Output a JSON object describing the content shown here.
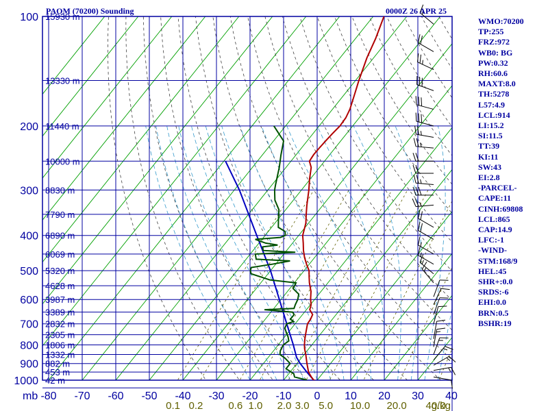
{
  "header": {
    "station": "PAOM (70200) Sounding",
    "valid_time": "0000Z 26 APR 25"
  },
  "colors": {
    "frame": "#0000a0",
    "grid": "#0000a0",
    "isotherm": "#00a000",
    "dry_adiabat": "#404040",
    "moist_adiabat": "#3399cc",
    "temperature": "#b00000",
    "dewpoint": "#005000",
    "parcel": "#0000c0",
    "wind": "#000000",
    "mixing_ratio": "#606000"
  },
  "indices": [
    "WMO:70200",
    "TP:255",
    "FRZ:972",
    "WB0: BG",
    "PW:0.32",
    "RH:60.6",
    "MAXT:8.0",
    "TH:5278",
    "L57:4.9",
    "LCL:914",
    "LI:15.2",
    "SI:11.5",
    "TT:39",
    "KI:11",
    "SW:43",
    "EI:2.8",
    "-PARCEL-",
    "CAPE:11",
    "CINH:69808",
    "LCL:865",
    "CAP:14.9",
    "LFC:-1",
    "-WIND-",
    "STM:168/9",
    "HEL:45",
    "SHR+:0.0",
    "SRDS:-6",
    "EHI:0.0",
    "BRN:0.5",
    "BSHR:19"
  ],
  "chart_data": {
    "type": "skew-t",
    "y_axis_label": "mb",
    "x_axis_label": "g/kg",
    "pressure_ticks": [
      100,
      200,
      300,
      400,
      500,
      600,
      700,
      800,
      900,
      1000
    ],
    "temperature_ticks": [
      -80,
      -70,
      -60,
      -50,
      -40,
      -30,
      -20,
      -10,
      0,
      10,
      20,
      30,
      40
    ],
    "temperature_tick_labels": [
      "-80",
      "-70",
      "-60",
      "-50",
      "-40",
      "-30",
      "-20",
      "-10",
      "0",
      "10",
      "20",
      "30",
      "40"
    ],
    "mixing_ratio_labels": [
      {
        "label": "0.1",
        "value": 0.1
      },
      {
        "label": "0.2",
        "value": 0.2
      },
      {
        "label": "0.6",
        "value": 0.6
      },
      {
        "label": "1.0",
        "value": 1.0
      },
      {
        "label": "2.0",
        "value": 2.0
      },
      {
        "label": "3.0",
        "value": 3.0
      },
      {
        "label": "5.0",
        "value": 5.0
      },
      {
        "label": "10.0",
        "value": 10.0
      },
      {
        "label": "20.0",
        "value": 20.0
      },
      {
        "label": "40.0",
        "value": 40.0
      }
    ],
    "height_labels": [
      {
        "p": 100,
        "label": "15930 m"
      },
      {
        "p": 150,
        "label": "13330 m"
      },
      {
        "p": 200,
        "label": "11440 m"
      },
      {
        "p": 250,
        "label": "10000 m"
      },
      {
        "p": 300,
        "label": "8830 m"
      },
      {
        "p": 350,
        "label": "7790 m"
      },
      {
        "p": 400,
        "label": "6890 m"
      },
      {
        "p": 450,
        "label": "6069 m"
      },
      {
        "p": 500,
        "label": "5320 m"
      },
      {
        "p": 550,
        "label": "4628 m"
      },
      {
        "p": 600,
        "label": "3987 m"
      },
      {
        "p": 650,
        "label": "3389 m"
      },
      {
        "p": 700,
        "label": "2832 m"
      },
      {
        "p": 750,
        "label": "2305 m"
      },
      {
        "p": 800,
        "label": "1806 m"
      },
      {
        "p": 850,
        "label": "1332 m"
      },
      {
        "p": 900,
        "label": "882 m"
      },
      {
        "p": 950,
        "label": "453 m"
      },
      {
        "p": 1000,
        "label": "42 m"
      }
    ],
    "temperature_profile": [
      [
        1010,
        1.0
      ],
      [
        1000,
        -1.0
      ],
      [
        980,
        -2.5
      ],
      [
        950,
        -4.5
      ],
      [
        900,
        -7.0
      ],
      [
        850,
        -9.5
      ],
      [
        820,
        -11.2
      ],
      [
        800,
        -12.2
      ],
      [
        770,
        -13.5
      ],
      [
        750,
        -14.3
      ],
      [
        720,
        -15.5
      ],
      [
        700,
        -16.3
      ],
      [
        680,
        -16.5
      ],
      [
        660,
        -17.0
      ],
      [
        640,
        -19.0
      ],
      [
        620,
        -19.8
      ],
      [
        600,
        -21.2
      ],
      [
        570,
        -23.0
      ],
      [
        540,
        -25.5
      ],
      [
        520,
        -27.0
      ],
      [
        500,
        -28.5
      ],
      [
        480,
        -30.8
      ],
      [
        460,
        -33.0
      ],
      [
        440,
        -35.0
      ],
      [
        420,
        -36.8
      ],
      [
        400,
        -38.8
      ],
      [
        370,
        -40.8
      ],
      [
        350,
        -42.8
      ],
      [
        330,
        -44.8
      ],
      [
        300,
        -47.8
      ],
      [
        280,
        -50.2
      ],
      [
        260,
        -52.5
      ],
      [
        250,
        -54.5
      ],
      [
        240,
        -54.8
      ],
      [
        230,
        -54.7
      ],
      [
        220,
        -54.5
      ],
      [
        210,
        -54.2
      ],
      [
        200,
        -53.8
      ],
      [
        190,
        -54.0
      ],
      [
        180,
        -54.8
      ],
      [
        165,
        -56.8
      ],
      [
        150,
        -59.0
      ],
      [
        130,
        -62.0
      ],
      [
        115,
        -64.0
      ],
      [
        100,
        -66.8
      ]
    ],
    "dewpoint_profile": [
      [
        1000,
        -3.0
      ],
      [
        980,
        -7.5
      ],
      [
        960,
        -8.5
      ],
      [
        930,
        -12.0
      ],
      [
        900,
        -12.0
      ],
      [
        870,
        -14.8
      ],
      [
        850,
        -17.2
      ],
      [
        830,
        -18.0
      ],
      [
        800,
        -18.5
      ],
      [
        780,
        -17.8
      ],
      [
        760,
        -19.0
      ],
      [
        740,
        -20.5
      ],
      [
        720,
        -22.0
      ],
      [
        700,
        -22.5
      ],
      [
        690,
        -21.0
      ],
      [
        680,
        -22.5
      ],
      [
        660,
        -22.5
      ],
      [
        650,
        -23.5
      ],
      [
        640,
        -32.5
      ],
      [
        635,
        -24.0
      ],
      [
        620,
        -24.5
      ],
      [
        600,
        -25.0
      ],
      [
        580,
        -26.0
      ],
      [
        560,
        -29.0
      ],
      [
        540,
        -29.5
      ],
      [
        530,
        -38.0
      ],
      [
        510,
        -45.0
      ],
      [
        500,
        -46.0
      ],
      [
        490,
        -46.5
      ],
      [
        480,
        -41.0
      ],
      [
        470,
        -36.5
      ],
      [
        465,
        -47.0
      ],
      [
        450,
        -48.5
      ],
      [
        445,
        -37.0
      ],
      [
        440,
        -47.0
      ],
      [
        430,
        -48.0
      ],
      [
        425,
        -44.0
      ],
      [
        420,
        -48.0
      ],
      [
        410,
        -52.0
      ],
      [
        405,
        -45.0
      ],
      [
        400,
        -44.0
      ],
      [
        390,
        -45.0
      ],
      [
        380,
        -48.0
      ],
      [
        360,
        -50.0
      ],
      [
        340,
        -52.0
      ],
      [
        320,
        -55.5
      ],
      [
        300,
        -58.0
      ],
      [
        290,
        -59.0
      ],
      [
        260,
        -62.0
      ],
      [
        240,
        -64.5
      ],
      [
        220,
        -67.0
      ],
      [
        200,
        -73.5
      ]
    ],
    "parcel_profile": [
      [
        1000,
        -1.0
      ],
      [
        950,
        -5.0
      ],
      [
        900,
        -9.0
      ],
      [
        865,
        -11.6
      ],
      [
        800,
        -15.5
      ],
      [
        700,
        -22.5
      ],
      [
        600,
        -30.5
      ],
      [
        500,
        -40.0
      ],
      [
        400,
        -52.5
      ],
      [
        300,
        -68.5
      ],
      [
        250,
        -79.5
      ]
    ],
    "wind_barbs": [
      {
        "p": 105,
        "dir": 310,
        "spd": 15
      },
      {
        "p": 125,
        "dir": 300,
        "spd": 20
      },
      {
        "p": 140,
        "dir": 295,
        "spd": 25
      },
      {
        "p": 160,
        "dir": 290,
        "spd": 30
      },
      {
        "p": 180,
        "dir": 285,
        "spd": 30
      },
      {
        "p": 200,
        "dir": 285,
        "spd": 30
      },
      {
        "p": 215,
        "dir": 280,
        "spd": 25
      },
      {
        "p": 230,
        "dir": 275,
        "spd": 25
      },
      {
        "p": 250,
        "dir": 270,
        "spd": 20
      },
      {
        "p": 270,
        "dir": 270,
        "spd": 20
      },
      {
        "p": 290,
        "dir": 275,
        "spd": 25
      },
      {
        "p": 310,
        "dir": 270,
        "spd": 30
      },
      {
        "p": 330,
        "dir": 265,
        "spd": 25
      },
      {
        "p": 380,
        "dir": 300,
        "spd": 20
      },
      {
        "p": 410,
        "dir": 300,
        "spd": 20
      },
      {
        "p": 450,
        "dir": 300,
        "spd": 15
      },
      {
        "p": 480,
        "dir": 300,
        "spd": 15
      },
      {
        "p": 510,
        "dir": 310,
        "spd": 15
      },
      {
        "p": 540,
        "dir": 320,
        "spd": 15
      },
      {
        "p": 590,
        "dir": 20,
        "spd": 10
      },
      {
        "p": 620,
        "dir": 25,
        "spd": 10
      },
      {
        "p": 660,
        "dir": 20,
        "spd": 10
      },
      {
        "p": 700,
        "dir": 15,
        "spd": 10
      },
      {
        "p": 770,
        "dir": 10,
        "spd": 10
      },
      {
        "p": 810,
        "dir": 10,
        "spd": 15
      },
      {
        "p": 850,
        "dir": 20,
        "spd": 15
      },
      {
        "p": 880,
        "dir": 40,
        "spd": 15
      },
      {
        "p": 910,
        "dir": 60,
        "spd": 15
      },
      {
        "p": 940,
        "dir": 80,
        "spd": 15
      },
      {
        "p": 980,
        "dir": 100,
        "spd": 10
      }
    ]
  }
}
